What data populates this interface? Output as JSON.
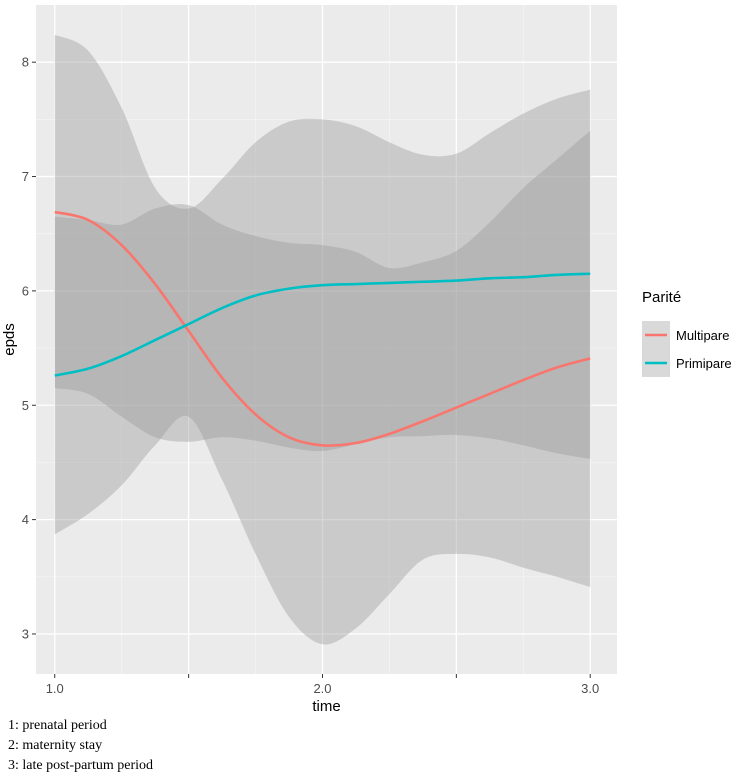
{
  "chart_data": {
    "type": "line",
    "xlabel": "time",
    "ylabel": "epds",
    "xlim": [
      0.93,
      3.1
    ],
    "ylim": [
      2.65,
      8.5
    ],
    "x_ticks": [
      1.0,
      1.5,
      2.0,
      2.5,
      3.0
    ],
    "x_tick_labels": [
      "1.0",
      "",
      "2.0",
      "",
      "3.0"
    ],
    "y_ticks": [
      3,
      4,
      5,
      6,
      7,
      8
    ],
    "y_tick_labels": [
      "3",
      "4",
      "5",
      "6",
      "7",
      "8"
    ],
    "grid": true,
    "legend": {
      "title": "Parité",
      "position": "right"
    },
    "series": [
      {
        "name": "Multipare",
        "color": "#F8766D",
        "x": [
          1.0,
          1.125,
          1.25,
          1.375,
          1.5,
          1.625,
          1.75,
          1.875,
          2.0,
          2.125,
          2.25,
          2.375,
          2.5,
          2.625,
          2.75,
          2.875,
          3.0
        ],
        "y": [
          6.69,
          6.62,
          6.4,
          6.06,
          5.65,
          5.24,
          4.92,
          4.72,
          4.65,
          4.67,
          4.75,
          4.86,
          4.98,
          5.1,
          5.22,
          5.33,
          5.41
        ],
        "ci_lower": [
          3.87,
          4.05,
          4.3,
          4.65,
          4.9,
          4.35,
          3.7,
          3.15,
          2.91,
          3.05,
          3.35,
          3.65,
          3.7,
          3.67,
          3.58,
          3.5,
          3.41
        ],
        "ci_upper": [
          8.24,
          8.1,
          7.6,
          6.9,
          6.72,
          6.98,
          7.3,
          7.48,
          7.5,
          7.44,
          7.3,
          7.19,
          7.2,
          7.38,
          7.55,
          7.68,
          7.76
        ]
      },
      {
        "name": "Primipare",
        "color": "#00BFC4",
        "x": [
          1.0,
          1.125,
          1.25,
          1.375,
          1.5,
          1.625,
          1.75,
          1.875,
          2.0,
          2.125,
          2.25,
          2.375,
          2.5,
          2.625,
          2.75,
          2.875,
          3.0
        ],
        "y": [
          5.26,
          5.32,
          5.43,
          5.57,
          5.71,
          5.85,
          5.96,
          6.02,
          6.05,
          6.06,
          6.07,
          6.08,
          6.09,
          6.11,
          6.12,
          6.14,
          6.15
        ],
        "ci_lower": [
          5.15,
          5.1,
          4.9,
          4.72,
          4.68,
          4.72,
          4.69,
          4.63,
          4.6,
          4.66,
          4.72,
          4.73,
          4.74,
          4.71,
          4.65,
          4.58,
          4.53
        ],
        "ci_upper": [
          6.65,
          6.62,
          6.58,
          6.72,
          6.75,
          6.58,
          6.48,
          6.42,
          6.4,
          6.34,
          6.2,
          6.25,
          6.35,
          6.6,
          6.9,
          7.15,
          7.4
        ]
      }
    ]
  },
  "notes": [
    "1: prenatal period",
    "2: maternity stay",
    "3: late post-partum period"
  ]
}
